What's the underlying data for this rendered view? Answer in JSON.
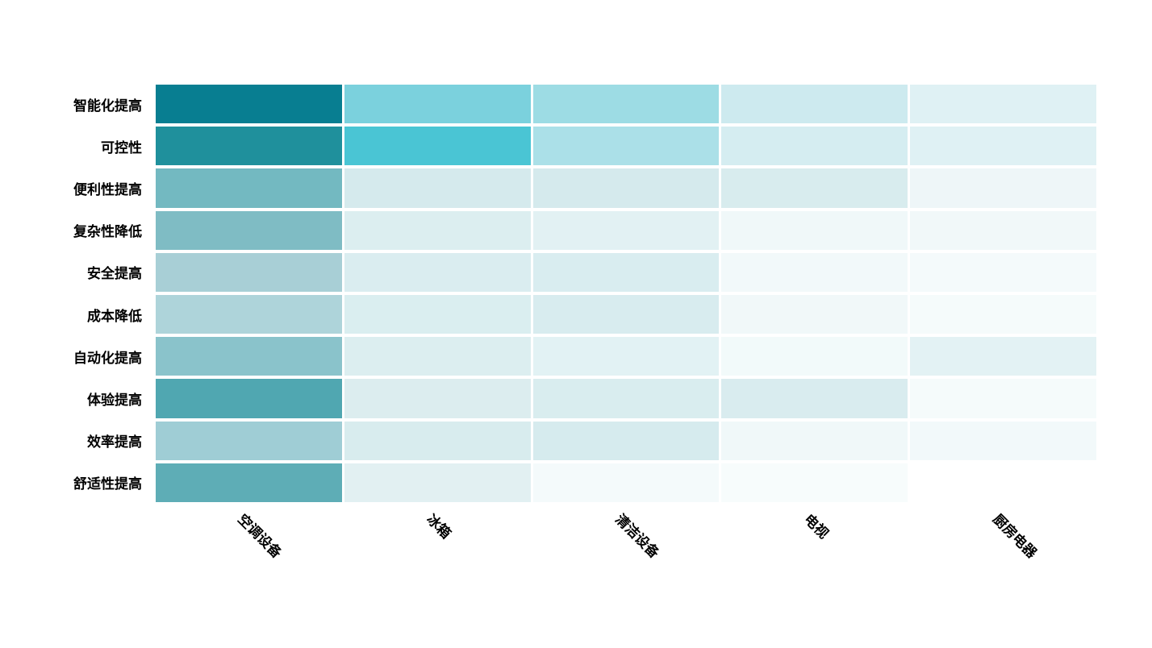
{
  "chart_data": {
    "type": "heatmap",
    "title": "",
    "xlabel": "",
    "ylabel": "",
    "legend": "none",
    "grid_gap_color": "#ffffff",
    "x_tick_rotation_deg": 45,
    "colormap": {
      "low": "#ffffff",
      "high": "#087e91"
    },
    "x_categories": [
      "空调设备",
      "冰箱",
      "清洁设备",
      "电视",
      "厨房电器"
    ],
    "y_categories": [
      "智能化提高",
      "可控性",
      "便利性提高",
      "复杂性降低",
      "安全提高",
      "成本降低",
      "自动化提高",
      "体验提高",
      "效率提高",
      "舒适性提高"
    ],
    "values": [
      [
        1.0,
        0.48,
        0.38,
        0.2,
        0.12
      ],
      [
        0.9,
        0.62,
        0.32,
        0.16,
        0.12
      ],
      [
        0.52,
        0.15,
        0.15,
        0.14,
        0.05
      ],
      [
        0.48,
        0.12,
        0.1,
        0.04,
        0.04
      ],
      [
        0.33,
        0.13,
        0.13,
        0.03,
        0.03
      ],
      [
        0.31,
        0.13,
        0.14,
        0.04,
        0.02
      ],
      [
        0.44,
        0.12,
        0.1,
        0.03,
        0.1
      ],
      [
        0.68,
        0.12,
        0.13,
        0.13,
        0.02
      ],
      [
        0.36,
        0.14,
        0.15,
        0.04,
        0.03
      ],
      [
        0.62,
        0.1,
        0.03,
        0.02,
        0.0
      ]
    ],
    "cell_colors": [
      [
        "#087e91",
        "#7bd1dd",
        "#9ddce4",
        "#cdeaef",
        "#dff1f4"
      ],
      [
        "#1f909c",
        "#4ac5d4",
        "#abe0e8",
        "#d5edf1",
        "#dff1f4"
      ],
      [
        "#73b9c1",
        "#d5eaed",
        "#d5eaed",
        "#d8ecee",
        "#eef6f8"
      ],
      [
        "#7fbcc4",
        "#dceef0",
        "#e2f1f3",
        "#f0f8f9",
        "#f1f8f9"
      ],
      [
        "#a8cfd6",
        "#daedf0",
        "#d9edf0",
        "#f2f9fa",
        "#f4fafb"
      ],
      [
        "#aed4da",
        "#daeef0",
        "#d8ecef",
        "#f1f8f9",
        "#f5fbfb"
      ],
      [
        "#8ac3cb",
        "#dceef0",
        "#e2f2f4",
        "#f2fafa",
        "#e3f2f4"
      ],
      [
        "#50a7b1",
        "#dcedef",
        "#d9edef",
        "#d9ecef",
        "#f5fbfb"
      ],
      [
        "#9fcdd5",
        "#d8ecee",
        "#d6ebee",
        "#f0f8f9",
        "#f2f9fa"
      ],
      [
        "#5eadb6",
        "#e2f0f2",
        "#f4fafb",
        "#f7fcfc",
        "#ffffff"
      ]
    ]
  }
}
